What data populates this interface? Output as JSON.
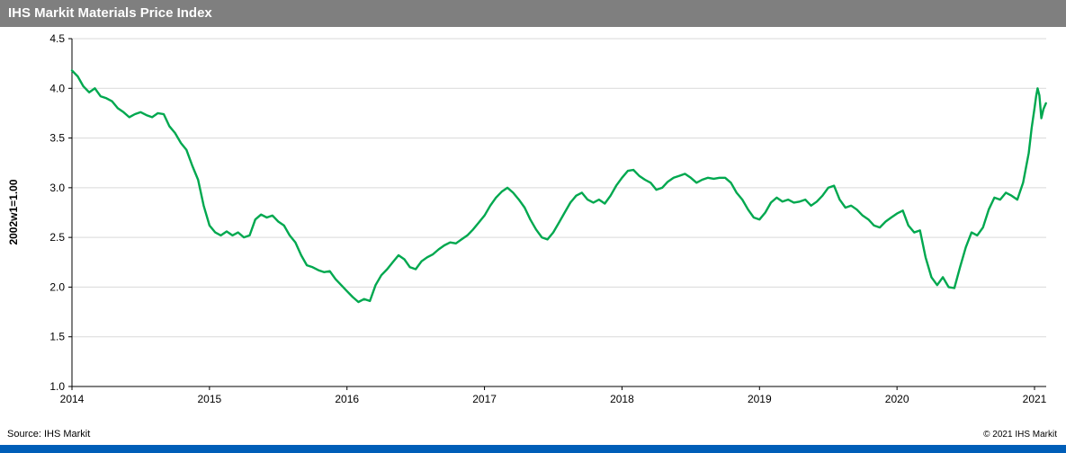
{
  "header": {
    "title": "IHS Markit Materials Price Index",
    "bg_color": "#7f7f7f"
  },
  "footer": {
    "source": "Source: IHS Markit",
    "copyright": "© 2021  IHS Markit",
    "bar_color": "#005eb8"
  },
  "chart_data": {
    "type": "line",
    "title": "IHS Markit Materials Price Index",
    "xlabel": "",
    "ylabel": "2002w1=1.00",
    "xlim": [
      2014,
      2021.085
    ],
    "ylim": [
      1.0,
      4.5
    ],
    "x_ticks": [
      2014,
      2015,
      2016,
      2017,
      2018,
      2019,
      2020,
      2021
    ],
    "x_tick_labels": [
      "2014",
      "2015",
      "2016",
      "2017",
      "2018",
      "2019",
      "2020",
      "2021"
    ],
    "y_ticks": [
      1.0,
      1.5,
      2.0,
      2.5,
      3.0,
      3.5,
      4.0,
      4.5
    ],
    "y_tick_labels": [
      "1.0",
      "1.5",
      "2.0",
      "2.5",
      "3.0",
      "3.5",
      "4.0",
      "4.5"
    ],
    "grid": "horizontal",
    "grid_color": "#d9d9d9",
    "legend": "none",
    "line_color": "#00a84f",
    "series": [
      {
        "name": "IHS Markit Materials Price Index (2002w1=1.00)",
        "points": [
          [
            2014.0,
            4.18
          ],
          [
            2014.042,
            4.12
          ],
          [
            2014.083,
            4.02
          ],
          [
            2014.125,
            3.96
          ],
          [
            2014.167,
            4.0
          ],
          [
            2014.208,
            3.92
          ],
          [
            2014.25,
            3.9
          ],
          [
            2014.292,
            3.87
          ],
          [
            2014.333,
            3.8
          ],
          [
            2014.375,
            3.76
          ],
          [
            2014.417,
            3.71
          ],
          [
            2014.458,
            3.74
          ],
          [
            2014.5,
            3.76
          ],
          [
            2014.542,
            3.73
          ],
          [
            2014.583,
            3.71
          ],
          [
            2014.625,
            3.75
          ],
          [
            2014.667,
            3.74
          ],
          [
            2014.708,
            3.62
          ],
          [
            2014.75,
            3.55
          ],
          [
            2014.792,
            3.45
          ],
          [
            2014.833,
            3.38
          ],
          [
            2014.875,
            3.22
          ],
          [
            2014.917,
            3.08
          ],
          [
            2014.958,
            2.82
          ],
          [
            2015.0,
            2.62
          ],
          [
            2015.042,
            2.55
          ],
          [
            2015.083,
            2.52
          ],
          [
            2015.125,
            2.56
          ],
          [
            2015.167,
            2.52
          ],
          [
            2015.208,
            2.55
          ],
          [
            2015.25,
            2.5
          ],
          [
            2015.292,
            2.52
          ],
          [
            2015.333,
            2.68
          ],
          [
            2015.375,
            2.73
          ],
          [
            2015.417,
            2.7
          ],
          [
            2015.458,
            2.72
          ],
          [
            2015.5,
            2.66
          ],
          [
            2015.542,
            2.62
          ],
          [
            2015.583,
            2.52
          ],
          [
            2015.625,
            2.45
          ],
          [
            2015.667,
            2.32
          ],
          [
            2015.708,
            2.22
          ],
          [
            2015.75,
            2.2
          ],
          [
            2015.792,
            2.17
          ],
          [
            2015.833,
            2.15
          ],
          [
            2015.875,
            2.16
          ],
          [
            2015.917,
            2.08
          ],
          [
            2015.958,
            2.02
          ],
          [
            2016.0,
            1.96
          ],
          [
            2016.042,
            1.9
          ],
          [
            2016.083,
            1.85
          ],
          [
            2016.125,
            1.88
          ],
          [
            2016.167,
            1.86
          ],
          [
            2016.208,
            2.02
          ],
          [
            2016.25,
            2.12
          ],
          [
            2016.292,
            2.18
          ],
          [
            2016.333,
            2.25
          ],
          [
            2016.375,
            2.32
          ],
          [
            2016.417,
            2.28
          ],
          [
            2016.458,
            2.2
          ],
          [
            2016.5,
            2.18
          ],
          [
            2016.542,
            2.26
          ],
          [
            2016.583,
            2.3
          ],
          [
            2016.625,
            2.33
          ],
          [
            2016.667,
            2.38
          ],
          [
            2016.708,
            2.42
          ],
          [
            2016.75,
            2.45
          ],
          [
            2016.792,
            2.44
          ],
          [
            2016.833,
            2.48
          ],
          [
            2016.875,
            2.52
          ],
          [
            2016.917,
            2.58
          ],
          [
            2016.958,
            2.65
          ],
          [
            2017.0,
            2.72
          ],
          [
            2017.042,
            2.82
          ],
          [
            2017.083,
            2.9
          ],
          [
            2017.125,
            2.96
          ],
          [
            2017.167,
            3.0
          ],
          [
            2017.208,
            2.95
          ],
          [
            2017.25,
            2.88
          ],
          [
            2017.292,
            2.8
          ],
          [
            2017.333,
            2.68
          ],
          [
            2017.375,
            2.58
          ],
          [
            2017.417,
            2.5
          ],
          [
            2017.458,
            2.48
          ],
          [
            2017.5,
            2.55
          ],
          [
            2017.542,
            2.65
          ],
          [
            2017.583,
            2.75
          ],
          [
            2017.625,
            2.85
          ],
          [
            2017.667,
            2.92
          ],
          [
            2017.708,
            2.95
          ],
          [
            2017.75,
            2.88
          ],
          [
            2017.792,
            2.85
          ],
          [
            2017.833,
            2.88
          ],
          [
            2017.875,
            2.84
          ],
          [
            2017.917,
            2.92
          ],
          [
            2017.958,
            3.02
          ],
          [
            2018.0,
            3.1
          ],
          [
            2018.042,
            3.17
          ],
          [
            2018.083,
            3.18
          ],
          [
            2018.125,
            3.12
          ],
          [
            2018.167,
            3.08
          ],
          [
            2018.208,
            3.05
          ],
          [
            2018.25,
            2.98
          ],
          [
            2018.292,
            3.0
          ],
          [
            2018.333,
            3.06
          ],
          [
            2018.375,
            3.1
          ],
          [
            2018.417,
            3.12
          ],
          [
            2018.458,
            3.14
          ],
          [
            2018.5,
            3.1
          ],
          [
            2018.542,
            3.05
          ],
          [
            2018.583,
            3.08
          ],
          [
            2018.625,
            3.1
          ],
          [
            2018.667,
            3.09
          ],
          [
            2018.708,
            3.1
          ],
          [
            2018.75,
            3.1
          ],
          [
            2018.792,
            3.05
          ],
          [
            2018.833,
            2.95
          ],
          [
            2018.875,
            2.88
          ],
          [
            2018.917,
            2.78
          ],
          [
            2018.958,
            2.7
          ],
          [
            2019.0,
            2.68
          ],
          [
            2019.042,
            2.75
          ],
          [
            2019.083,
            2.85
          ],
          [
            2019.125,
            2.9
          ],
          [
            2019.167,
            2.86
          ],
          [
            2019.208,
            2.88
          ],
          [
            2019.25,
            2.85
          ],
          [
            2019.292,
            2.86
          ],
          [
            2019.333,
            2.88
          ],
          [
            2019.375,
            2.82
          ],
          [
            2019.417,
            2.86
          ],
          [
            2019.458,
            2.92
          ],
          [
            2019.5,
            3.0
          ],
          [
            2019.542,
            3.02
          ],
          [
            2019.583,
            2.88
          ],
          [
            2019.625,
            2.8
          ],
          [
            2019.667,
            2.82
          ],
          [
            2019.708,
            2.78
          ],
          [
            2019.75,
            2.72
          ],
          [
            2019.792,
            2.68
          ],
          [
            2019.833,
            2.62
          ],
          [
            2019.875,
            2.6
          ],
          [
            2019.917,
            2.66
          ],
          [
            2019.958,
            2.7
          ],
          [
            2020.0,
            2.74
          ],
          [
            2020.042,
            2.77
          ],
          [
            2020.083,
            2.62
          ],
          [
            2020.125,
            2.55
          ],
          [
            2020.167,
            2.57
          ],
          [
            2020.208,
            2.3
          ],
          [
            2020.25,
            2.1
          ],
          [
            2020.292,
            2.02
          ],
          [
            2020.333,
            2.1
          ],
          [
            2020.375,
            2.0
          ],
          [
            2020.417,
            1.99
          ],
          [
            2020.458,
            2.2
          ],
          [
            2020.5,
            2.4
          ],
          [
            2020.542,
            2.55
          ],
          [
            2020.583,
            2.52
          ],
          [
            2020.625,
            2.6
          ],
          [
            2020.667,
            2.78
          ],
          [
            2020.708,
            2.9
          ],
          [
            2020.75,
            2.88
          ],
          [
            2020.792,
            2.95
          ],
          [
            2020.833,
            2.92
          ],
          [
            2020.875,
            2.88
          ],
          [
            2020.917,
            3.05
          ],
          [
            2020.958,
            3.35
          ],
          [
            2020.979,
            3.6
          ],
          [
            2021.0,
            3.8
          ],
          [
            2021.012,
            3.92
          ],
          [
            2021.022,
            4.0
          ],
          [
            2021.035,
            3.93
          ],
          [
            2021.05,
            3.7
          ],
          [
            2021.065,
            3.79
          ],
          [
            2021.083,
            3.85
          ]
        ]
      }
    ]
  }
}
